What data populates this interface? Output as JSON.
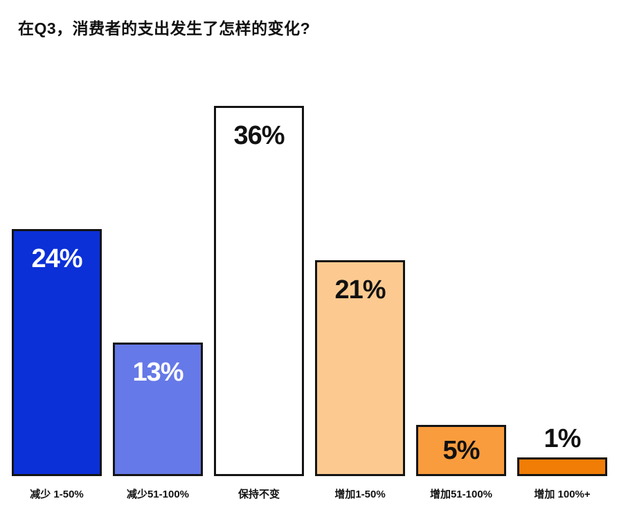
{
  "title": "在Q3，消费者的支出发生了怎样的变化?",
  "chart_data": {
    "type": "bar",
    "title": "在Q3，消费者的支出发生了怎样的变化?",
    "categories": [
      "减少 1-50%",
      "减少51-100%",
      "保持不变",
      "增加1-50%",
      "增加51-100%",
      "增加 100%+"
    ],
    "values": [
      24,
      13,
      36,
      21,
      5,
      1
    ],
    "value_labels": [
      "24%",
      "13%",
      "36%",
      "21%",
      "5%",
      "1%"
    ],
    "bar_colors": [
      "#0B30D8",
      "#6679E8",
      "#FFFFFF",
      "#FCCA90",
      "#F99C3D",
      "#F17D06"
    ],
    "value_label_colors": [
      "#FFFFFF",
      "#FFFFFF",
      "#111111",
      "#111111",
      "#111111",
      "#111111"
    ],
    "bar_border_color": "#141414",
    "xlabel": "",
    "ylabel": "",
    "ylim": [
      0,
      36
    ],
    "grid": false,
    "legend": false,
    "orientation": "vertical"
  }
}
